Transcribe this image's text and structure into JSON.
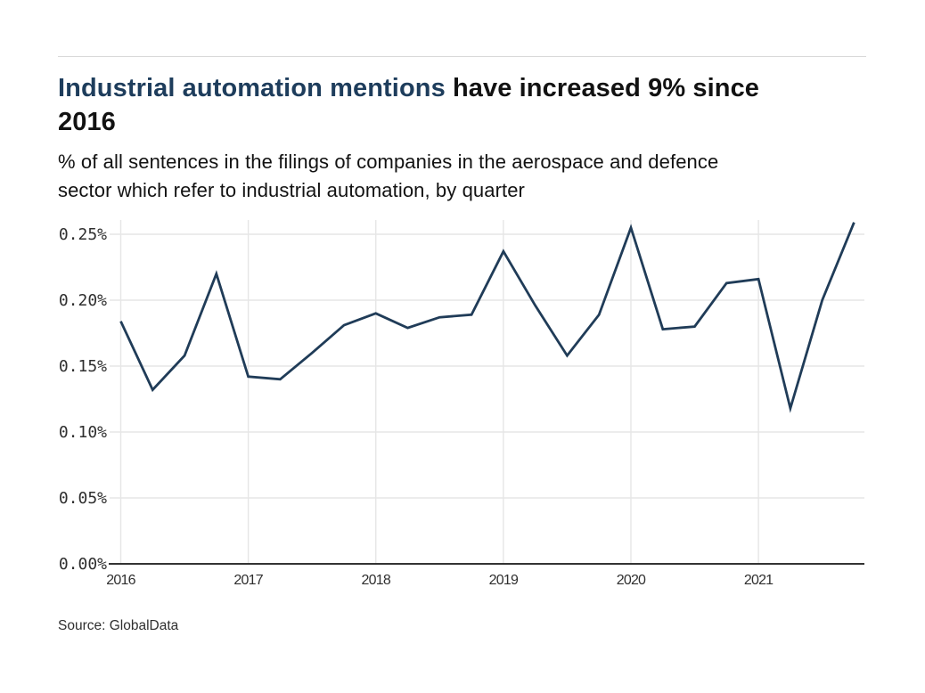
{
  "header": {
    "title_highlight": "Industrial automation mentions ",
    "title_rest": "have increased 9% since\n2016",
    "subtitle": "% of all sentences in the filings of companies in the aerospace and defence\nsector which refer to industrial automation, by quarter"
  },
  "footer": {
    "source": "Source: GlobalData"
  },
  "colors": {
    "accent_navy": "#1e3d5c",
    "line": "#203c58",
    "gridline": "#e6e6e6",
    "axis_baseline": "#333333",
    "tick_label": "#2f2f2f",
    "divider": "#d9d9d9"
  },
  "chart_data": {
    "type": "line",
    "title": "Industrial automation mentions have increased 9% since 2016",
    "subtitle": "% of all sentences in the filings of companies in the aerospace and defence sector which refer to industrial automation, by quarter",
    "unit": "%",
    "x": [
      "2016 Q1",
      "2016 Q2",
      "2016 Q3",
      "2016 Q4",
      "2017 Q1",
      "2017 Q2",
      "2017 Q3",
      "2017 Q4",
      "2018 Q1",
      "2018 Q2",
      "2018 Q3",
      "2018 Q4",
      "2019 Q1",
      "2019 Q2",
      "2019 Q3",
      "2019 Q4",
      "2020 Q1",
      "2020 Q2",
      "2020 Q3",
      "2020 Q4",
      "2021 Q1",
      "2021 Q2",
      "2021 Q3",
      "2021 Q4"
    ],
    "values": [
      0.184,
      0.132,
      0.158,
      0.22,
      0.142,
      0.14,
      0.16,
      0.181,
      0.19,
      0.179,
      0.187,
      0.189,
      0.237,
      0.196,
      0.158,
      0.189,
      0.255,
      0.178,
      0.18,
      0.213,
      0.216,
      0.118,
      0.2,
      0.259
    ],
    "xlabel": "",
    "ylabel": "",
    "x_tick_labels": [
      "2016",
      "2017",
      "2018",
      "2019",
      "2020",
      "2021"
    ],
    "y_ticks": [
      0,
      0.05,
      0.1,
      0.15,
      0.2,
      0.25
    ],
    "y_tick_labels": [
      "0.00%",
      "0.05%",
      "0.10%",
      "0.15%",
      "0.20%",
      "0.25%"
    ],
    "ylim": [
      0,
      0.25
    ],
    "grid": true,
    "legend": "none",
    "markers": "none",
    "source": "Source: GlobalData"
  }
}
